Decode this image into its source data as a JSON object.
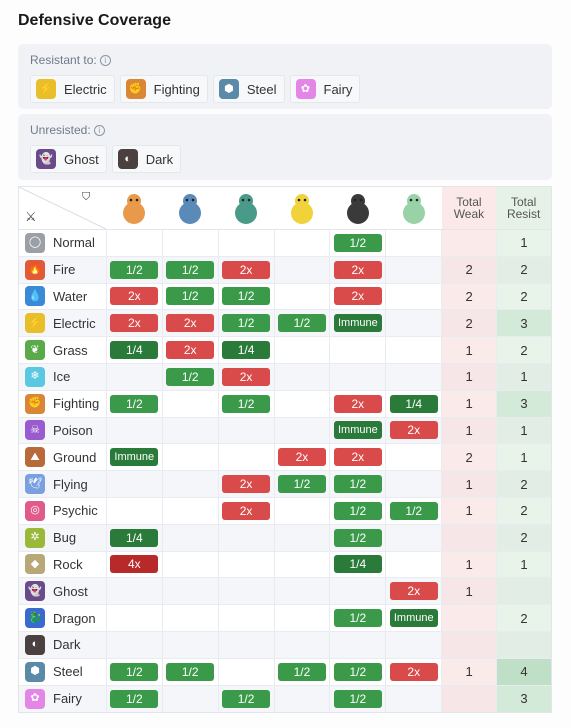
{
  "title": "Defensive Coverage",
  "resistant": {
    "label": "Resistant to:",
    "types": [
      {
        "name": "Electric",
        "color": "#e8bf2a",
        "icon": "bolt-icon",
        "glyph": "⚡"
      },
      {
        "name": "Fighting",
        "color": "#d98736",
        "icon": "fist-icon",
        "glyph": "✊"
      },
      {
        "name": "Steel",
        "color": "#5a8aa8",
        "icon": "steel-icon",
        "glyph": "⬢"
      },
      {
        "name": "Fairy",
        "color": "#e486e8",
        "icon": "fairy-icon",
        "glyph": "✿"
      }
    ]
  },
  "unresisted": {
    "label": "Unresisted:",
    "types": [
      {
        "name": "Ghost",
        "color": "#6a4a8a",
        "icon": "ghost-icon",
        "glyph": "👻"
      },
      {
        "name": "Dark",
        "color": "#4a4040",
        "icon": "dark-icon",
        "glyph": "◐"
      }
    ]
  },
  "table": {
    "total_weak": "Total Weak",
    "total_resist": "Total Resist",
    "pokemon": [
      {
        "name": "charizard-sprite",
        "color": "#e89a4a"
      },
      {
        "name": "blastoise-sprite",
        "color": "#5a8ab8"
      },
      {
        "name": "venusaur-sprite",
        "color": "#4a9a8a"
      },
      {
        "name": "pikachu-sprite",
        "color": "#f2d23a"
      },
      {
        "name": "honchkrow-sprite",
        "color": "#3a3a3a"
      },
      {
        "name": "gardevoir-sprite",
        "color": "#9ad2a8"
      }
    ],
    "rows": [
      {
        "type": "Normal",
        "color": "#9aa0a6",
        "glyph": "◯",
        "cells": [
          "",
          "",
          "",
          "",
          "1/2",
          ""
        ],
        "weak": "",
        "resist": "1"
      },
      {
        "type": "Fire",
        "color": "#e05a3a",
        "glyph": "🔥",
        "cells": [
          "1/2",
          "1/2",
          "2x",
          "",
          "2x",
          ""
        ],
        "weak": "2",
        "resist": "2"
      },
      {
        "type": "Water",
        "color": "#3a8ad8",
        "glyph": "💧",
        "cells": [
          "2x",
          "1/2",
          "1/2",
          "",
          "2x",
          ""
        ],
        "weak": "2",
        "resist": "2"
      },
      {
        "type": "Electric",
        "color": "#e8bf2a",
        "glyph": "⚡",
        "cells": [
          "2x",
          "2x",
          "1/2",
          "1/2",
          "Immune",
          ""
        ],
        "weak": "2",
        "resist": "3"
      },
      {
        "type": "Grass",
        "color": "#5aaa4a",
        "glyph": "❦",
        "cells": [
          "1/4",
          "2x",
          "1/4",
          "",
          "",
          ""
        ],
        "weak": "1",
        "resist": "2"
      },
      {
        "type": "Ice",
        "color": "#5ac8e0",
        "glyph": "❄",
        "cells": [
          "",
          "1/2",
          "2x",
          "",
          "",
          ""
        ],
        "weak": "1",
        "resist": "1"
      },
      {
        "type": "Fighting",
        "color": "#d98736",
        "glyph": "✊",
        "cells": [
          "1/2",
          "",
          "1/2",
          "",
          "2x",
          "1/4"
        ],
        "weak": "1",
        "resist": "3"
      },
      {
        "type": "Poison",
        "color": "#9a5ad0",
        "glyph": "☠",
        "cells": [
          "",
          "",
          "",
          "",
          "Immune",
          "2x"
        ],
        "weak": "1",
        "resist": "1"
      },
      {
        "type": "Ground",
        "color": "#b86a3a",
        "glyph": "⛰",
        "cells": [
          "Immune",
          "",
          "",
          "2x",
          "2x",
          ""
        ],
        "weak": "2",
        "resist": "1"
      },
      {
        "type": "Flying",
        "color": "#7aa0e0",
        "glyph": "🕊",
        "cells": [
          "",
          "",
          "2x",
          "1/2",
          "1/2",
          ""
        ],
        "weak": "1",
        "resist": "2"
      },
      {
        "type": "Psychic",
        "color": "#e05a8a",
        "glyph": "◎",
        "cells": [
          "",
          "",
          "2x",
          "",
          "1/2",
          "1/2"
        ],
        "weak": "1",
        "resist": "2"
      },
      {
        "type": "Bug",
        "color": "#9ab83a",
        "glyph": "✲",
        "cells": [
          "1/4",
          "",
          "",
          "",
          "1/2",
          ""
        ],
        "weak": "",
        "resist": "2"
      },
      {
        "type": "Rock",
        "color": "#b8a878",
        "glyph": "◆",
        "cells": [
          "4x",
          "",
          "",
          "",
          "1/4",
          ""
        ],
        "weak": "1",
        "resist": "1"
      },
      {
        "type": "Ghost",
        "color": "#6a4a8a",
        "glyph": "👻",
        "cells": [
          "",
          "",
          "",
          "",
          "",
          "2x"
        ],
        "weak": "1",
        "resist": ""
      },
      {
        "type": "Dragon",
        "color": "#3a6ad0",
        "glyph": "🐉",
        "cells": [
          "",
          "",
          "",
          "",
          "1/2",
          "Immune"
        ],
        "weak": "",
        "resist": "2"
      },
      {
        "type": "Dark",
        "color": "#4a4040",
        "glyph": "◐",
        "cells": [
          "",
          "",
          "",
          "",
          "",
          ""
        ],
        "weak": "",
        "resist": ""
      },
      {
        "type": "Steel",
        "color": "#5a8aa8",
        "glyph": "⬢",
        "cells": [
          "1/2",
          "1/2",
          "",
          "1/2",
          "1/2",
          "2x"
        ],
        "weak": "1",
        "resist": "4"
      },
      {
        "type": "Fairy",
        "color": "#e486e8",
        "glyph": "✿",
        "cells": [
          "1/2",
          "",
          "1/2",
          "",
          "1/2",
          ""
        ],
        "weak": "",
        "resist": "3"
      }
    ]
  },
  "colors": {
    "resist": "#3a9a4a",
    "quarter": "#2a7a3a",
    "weak": "#d94a4a",
    "quad": "#b82a2a",
    "immune": "#2a7a3a",
    "resist_strong": "#bfe0c6",
    "resist_mid": "#d4ead8"
  }
}
